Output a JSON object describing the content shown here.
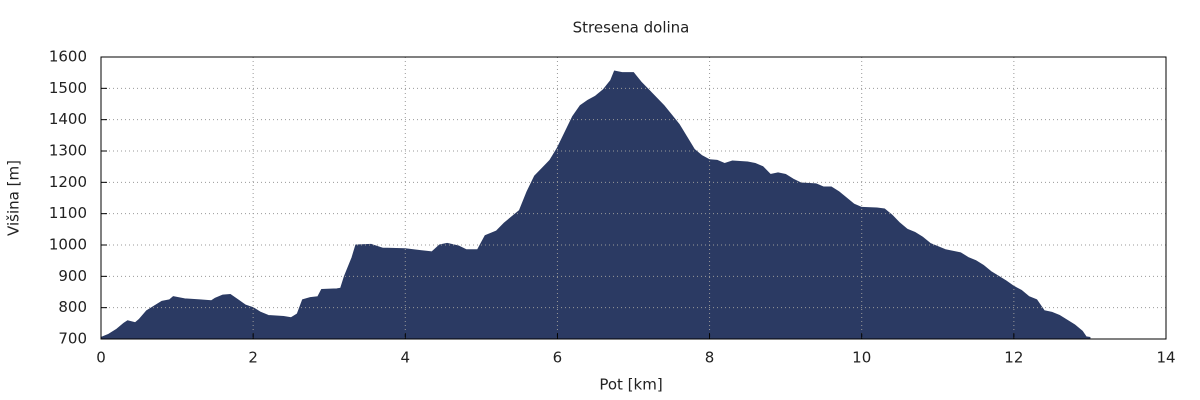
{
  "chart_data": {
    "type": "area",
    "title": "Stresena dolina",
    "x_label": "Pot [km]",
    "y_label": "Višina [m]",
    "color": "#2b3a63",
    "grid": true,
    "xlim": [
      0,
      14
    ],
    "xticks": [
      0,
      2,
      4,
      6,
      8,
      10,
      12,
      14
    ],
    "ylim": [
      700,
      1600
    ],
    "yticks": [
      700,
      800,
      900,
      1000,
      1100,
      1200,
      1300,
      1400,
      1500,
      1600
    ],
    "x": [
      0,
      0.1,
      0.2,
      0.3,
      0.35,
      0.45,
      0.5,
      0.6,
      0.7,
      0.8,
      0.9,
      0.95,
      1.1,
      1.3,
      1.45,
      1.5,
      1.6,
      1.7,
      1.8,
      1.9,
      2.0,
      2.1,
      2.2,
      2.4,
      2.5,
      2.58,
      2.65,
      2.75,
      2.85,
      2.9,
      3.1,
      3.15,
      3.2,
      3.3,
      3.35,
      3.55,
      3.7,
      4.0,
      4.2,
      4.35,
      4.45,
      4.55,
      4.7,
      4.8,
      4.95,
      5.05,
      5.2,
      5.3,
      5.45,
      5.5,
      5.6,
      5.7,
      5.8,
      5.9,
      6.0,
      6.1,
      6.2,
      6.3,
      6.4,
      6.5,
      6.6,
      6.7,
      6.75,
      6.85,
      7.0,
      7.1,
      7.2,
      7.3,
      7.4,
      7.5,
      7.6,
      7.7,
      7.8,
      7.9,
      8.0,
      8.1,
      8.2,
      8.3,
      8.5,
      8.6,
      8.7,
      8.8,
      8.9,
      9.0,
      9.1,
      9.2,
      9.4,
      9.5,
      9.6,
      9.7,
      9.8,
      9.9,
      10.0,
      10.2,
      10.3,
      10.4,
      10.5,
      10.6,
      10.7,
      10.8,
      10.9,
      11.0,
      11.1,
      11.3,
      11.4,
      11.5,
      11.6,
      11.7,
      11.8,
      11.9,
      12.0,
      12.1,
      12.2,
      12.3,
      12.4,
      12.5,
      12.6,
      12.7,
      12.8,
      12.9,
      12.95,
      13.0
    ],
    "values": [
      705,
      715,
      730,
      750,
      758,
      752,
      762,
      790,
      805,
      820,
      825,
      835,
      828,
      825,
      822,
      830,
      840,
      842,
      825,
      808,
      800,
      785,
      775,
      772,
      768,
      780,
      825,
      832,
      835,
      858,
      860,
      862,
      900,
      960,
      1000,
      1002,
      990,
      988,
      982,
      978,
      1000,
      1005,
      997,
      985,
      985,
      1030,
      1045,
      1070,
      1100,
      1110,
      1170,
      1220,
      1245,
      1270,
      1310,
      1360,
      1410,
      1445,
      1462,
      1475,
      1495,
      1525,
      1555,
      1550,
      1550,
      1520,
      1495,
      1470,
      1445,
      1415,
      1385,
      1345,
      1305,
      1285,
      1272,
      1270,
      1260,
      1268,
      1265,
      1260,
      1250,
      1225,
      1230,
      1225,
      1210,
      1198,
      1195,
      1185,
      1185,
      1170,
      1150,
      1130,
      1120,
      1118,
      1115,
      1095,
      1070,
      1050,
      1040,
      1025,
      1005,
      995,
      985,
      975,
      960,
      950,
      935,
      915,
      900,
      885,
      868,
      855,
      835,
      825,
      790,
      785,
      775,
      760,
      745,
      725,
      707,
      705
    ]
  }
}
